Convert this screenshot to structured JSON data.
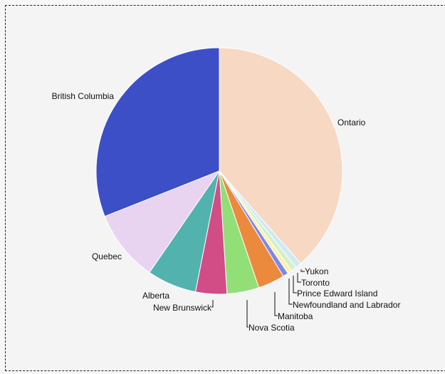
{
  "chart_data": {
    "type": "pie",
    "start_angle_deg": 0,
    "direction": "clockwise",
    "legend": "none",
    "slices": [
      {
        "label": "Ontario",
        "value": 38.5,
        "color": "#f7d8c3"
      },
      {
        "label": "Yukon",
        "value": 0.8,
        "color": "#cde9f7"
      },
      {
        "label": "Toronto",
        "value": 0.7,
        "color": "#d6f0c2"
      },
      {
        "label": "Prince Edward Island",
        "value": 0.6,
        "color": "#fbf0b0"
      },
      {
        "label": "Newfoundland and Labrador",
        "value": 0.7,
        "color": "#7b88e6"
      },
      {
        "label": "Manitoba",
        "value": 3.5,
        "color": "#eb8a3c"
      },
      {
        "label": "Nova Scotia",
        "value": 4.2,
        "color": "#92df77"
      },
      {
        "label": "New Brunswick",
        "value": 4.1,
        "color": "#d24c86"
      },
      {
        "label": "Alberta",
        "value": 6.5,
        "color": "#52b3ae"
      },
      {
        "label": "Quebec",
        "value": 9.4,
        "color": "#e8d3f1"
      },
      {
        "label": "British Columbia",
        "value": 31.0,
        "color": "#3c4fc6"
      }
    ]
  }
}
